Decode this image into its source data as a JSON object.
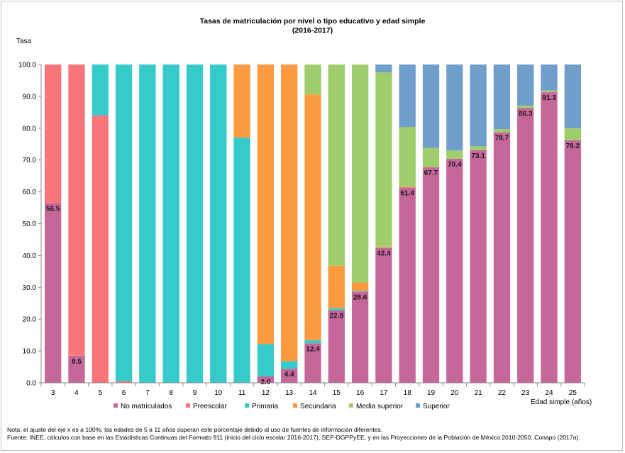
{
  "colors": {
    "No matriculados": "#c6679a",
    "Preescolar": "#f8757a",
    "Primaria": "#36cbca",
    "Secundaria": "#fb9a3e",
    "Media superior": "#9fcd6c",
    "Superior": "#6f9ecb"
  },
  "chart_data": {
    "type": "bar",
    "stacked": true,
    "title": "Tasas de matriculación por nivel o tipo educativo y edad simple",
    "subtitle": "(2016-2017)",
    "ylabel": "Tasa",
    "xlabel": "Edad simple (años)",
    "ylim": [
      0,
      100
    ],
    "yticks": [
      "0.0",
      "10.0",
      "20.0",
      "30.0",
      "40.0",
      "50.0",
      "60.0",
      "70.0",
      "80.0",
      "90.0",
      "100.0"
    ],
    "grid": false,
    "legend_position": "bottom",
    "categories": [
      "3",
      "4",
      "5",
      "6",
      "7",
      "8",
      "9",
      "10",
      "11",
      "12",
      "13",
      "14",
      "15",
      "16",
      "17",
      "18",
      "19",
      "20",
      "21",
      "22",
      "23",
      "24",
      "25"
    ],
    "series": [
      {
        "name": "No matriculados",
        "values": [
          56.5,
          8.5,
          0,
          0,
          0,
          0,
          0,
          0,
          0,
          2.0,
          4.4,
          12.4,
          22.8,
          28.6,
          42.4,
          61.4,
          67.7,
          70.4,
          73.1,
          78.7,
          86.3,
          91.3,
          76.2
        ]
      },
      {
        "name": "Preescolar",
        "values": [
          43.5,
          91.5,
          84.0,
          0.5,
          0,
          0,
          0,
          0,
          0,
          0,
          0,
          0,
          0,
          0,
          0,
          0,
          0,
          0,
          0,
          0,
          0,
          0,
          0
        ]
      },
      {
        "name": "Primaria",
        "values": [
          0,
          0,
          16.0,
          99.5,
          100,
          100,
          100,
          100,
          77.0,
          10.2,
          2.4,
          1.0,
          0.6,
          0.2,
          0.1,
          0,
          0,
          0,
          0,
          0,
          0,
          0,
          0
        ]
      },
      {
        "name": "Secundaria",
        "values": [
          0,
          0,
          0,
          0,
          0,
          0,
          0,
          0,
          23.0,
          87.8,
          93.2,
          77.2,
          13.4,
          2.7,
          0.3,
          0.2,
          0.1,
          0,
          0,
          0,
          0,
          0,
          0
        ]
      },
      {
        "name": "Media superior",
        "values": [
          0,
          0,
          0,
          0,
          0,
          0,
          0,
          0,
          0,
          0,
          0,
          9.4,
          63.2,
          68.5,
          54.7,
          18.8,
          6.0,
          2.6,
          1.2,
          1.0,
          0.8,
          0.5,
          3.8
        ]
      },
      {
        "name": "Superior",
        "values": [
          0,
          0,
          0,
          0,
          0,
          0,
          0,
          0,
          0,
          0,
          0,
          0,
          0,
          0,
          2.5,
          19.6,
          26.2,
          27.0,
          25.7,
          20.3,
          12.9,
          8.2,
          20.0
        ]
      }
    ],
    "data_labels": [
      "56.5",
      "8.5",
      "",
      "",
      "",
      "",
      "",
      "",
      "",
      "2.0",
      "4.4",
      "12.4",
      "22.8",
      "28.6",
      "42.4",
      "61.4",
      "67.7",
      "70.4",
      "73.1",
      "78.7",
      "86.3",
      "91.3",
      "76.2"
    ]
  },
  "legend": [
    "No matriculados",
    "Preescolar",
    "Primaria",
    "Secundaria",
    "Media superior",
    "Superior"
  ],
  "notes": {
    "nota": "Nota: el ajuste del eje x es a 100%; las edades de 5 a 11 años superan este porcentaje debido al uso de fuentes de información diferentes.",
    "fuente": "Fuente: INEE, cálculos con base en las Estadísticas Continuas del Formato 911  (inicio del ciclo escolar 2016-2017),  SEP-DGPPyEE,  y en las Proyecciones de la Población de México 2010-2050,  Conapo (2017a)."
  }
}
